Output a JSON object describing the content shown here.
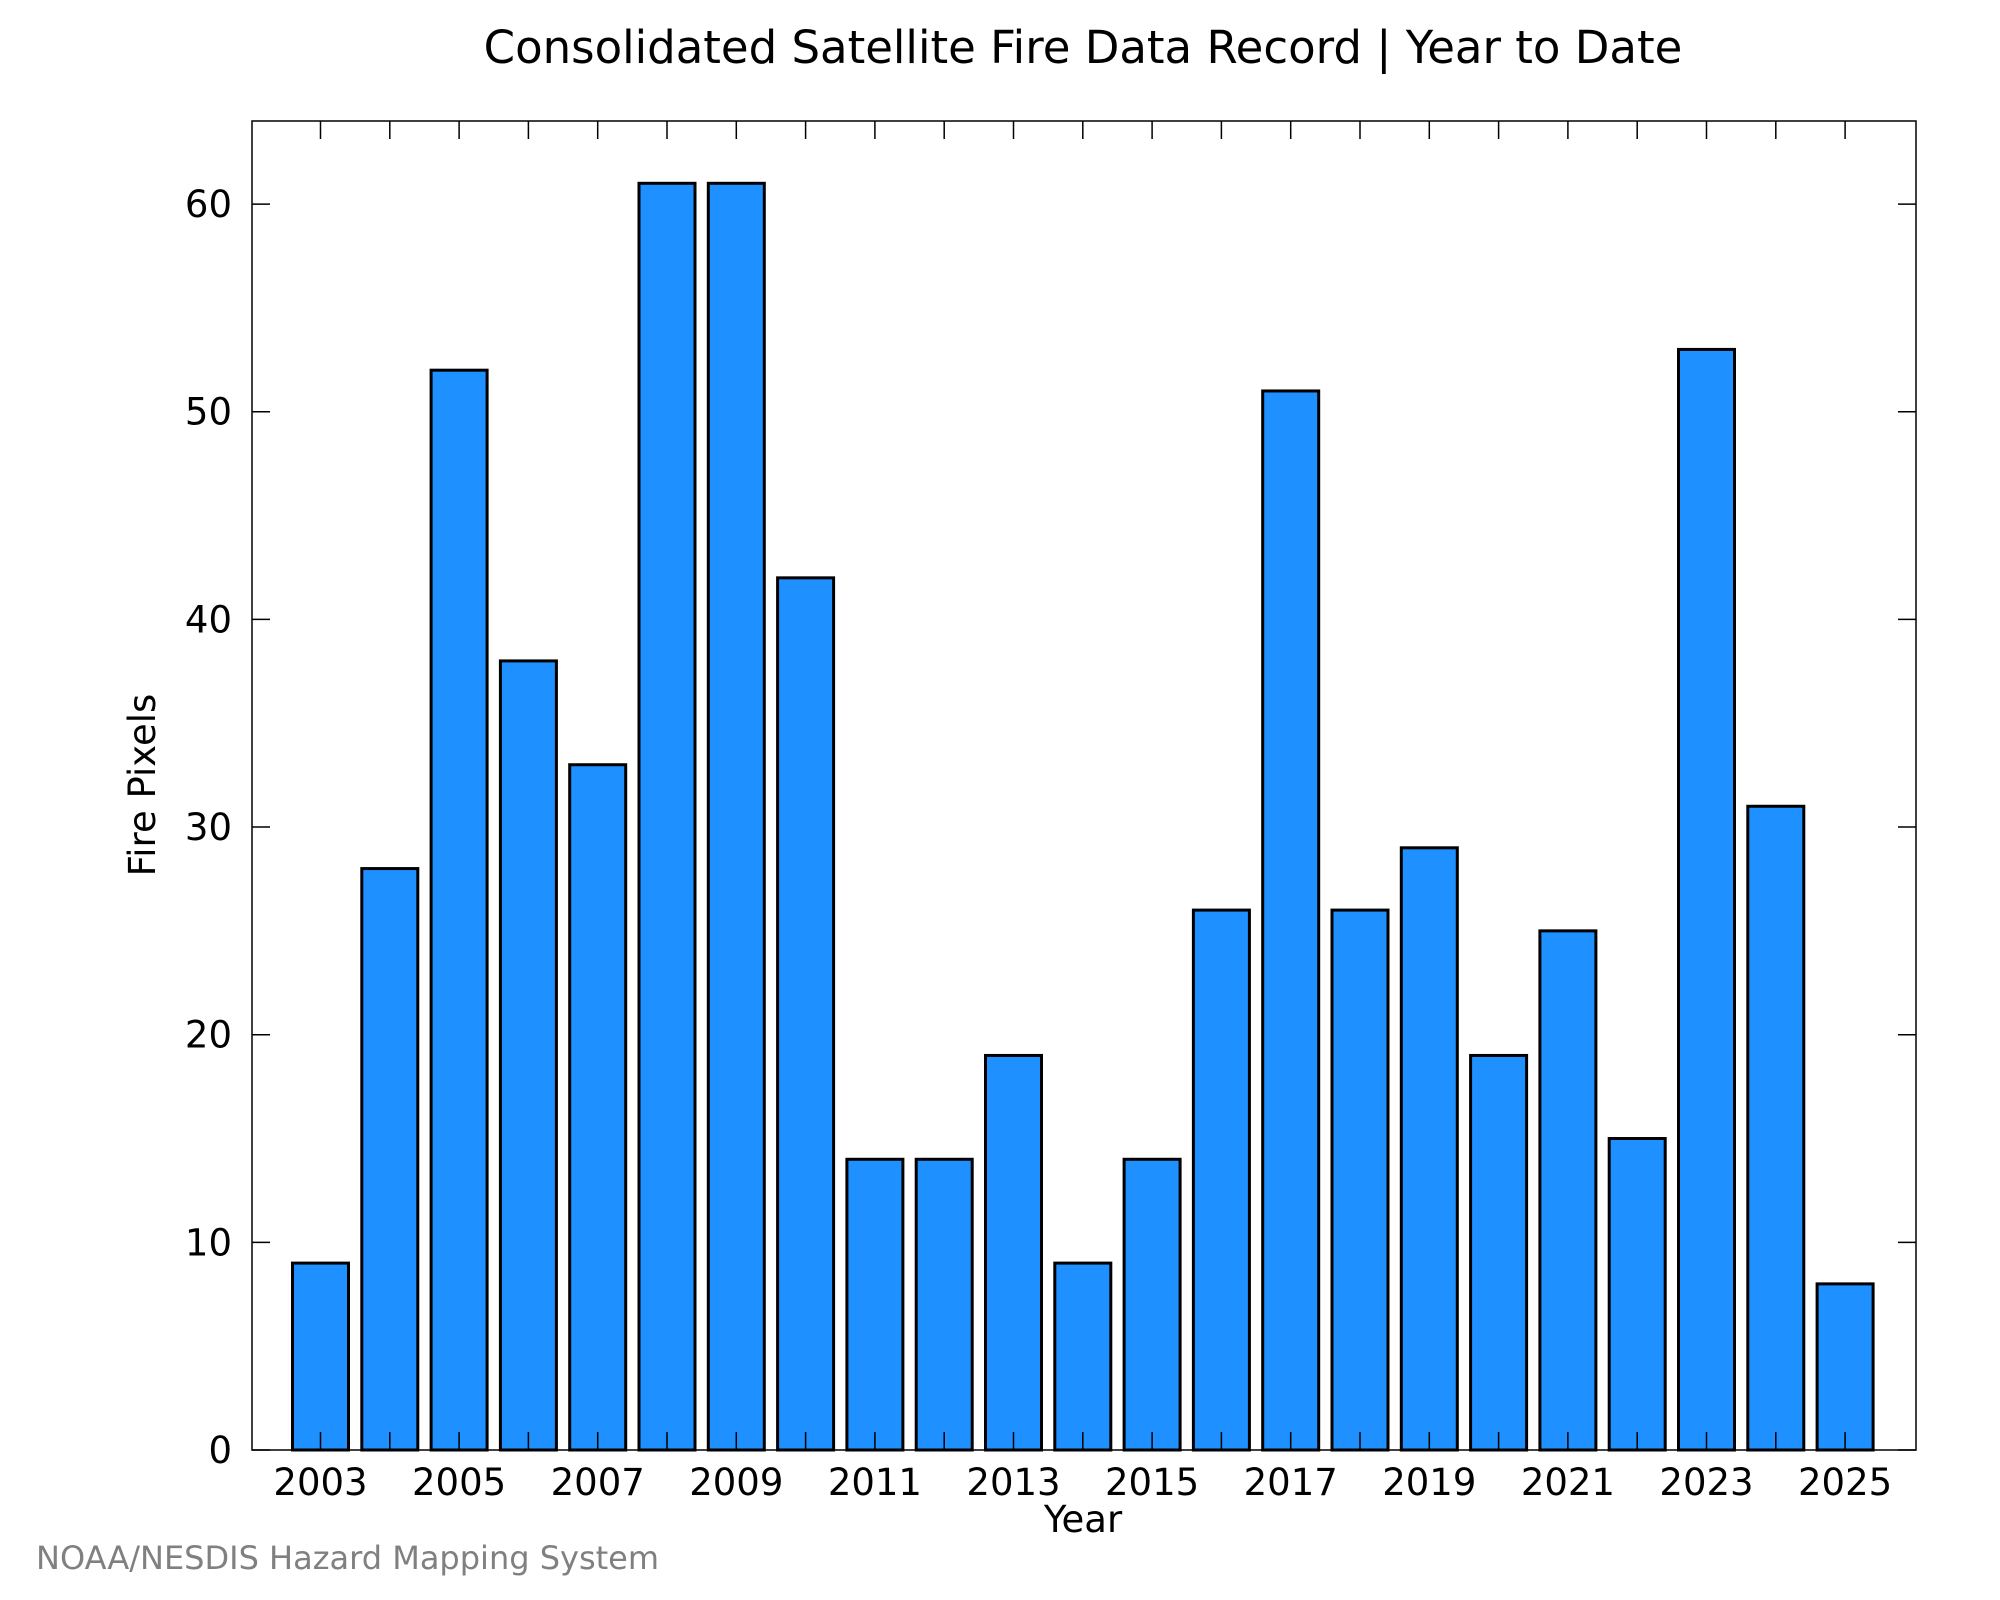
{
  "chart_data": {
    "type": "bar",
    "title": "Consolidated Satellite Fire Data Record | Year to Date",
    "xlabel": "Year",
    "ylabel": "Fire Pixels",
    "categories": [
      "2003",
      "2004",
      "2005",
      "2006",
      "2007",
      "2008",
      "2009",
      "2010",
      "2011",
      "2012",
      "2013",
      "2014",
      "2015",
      "2016",
      "2017",
      "2018",
      "2019",
      "2020",
      "2021",
      "2022",
      "2023",
      "2024",
      "2025"
    ],
    "values": [
      9,
      28,
      52,
      38,
      33,
      61,
      61,
      42,
      14,
      14,
      19,
      9,
      14,
      26,
      51,
      26,
      29,
      19,
      25,
      15,
      53,
      31,
      8
    ],
    "x_tick_labels": [
      "2003",
      "2005",
      "2007",
      "2009",
      "2011",
      "2013",
      "2015",
      "2017",
      "2019",
      "2021",
      "2023",
      "2025"
    ],
    "y_ticks": [
      0,
      10,
      20,
      30,
      40,
      50,
      60
    ],
    "ylim": [
      0,
      64
    ],
    "grid": false,
    "bar_color": "#1e90ff",
    "edge_color": "#000000"
  },
  "credit": "NOAA/NESDIS Hazard Mapping System"
}
